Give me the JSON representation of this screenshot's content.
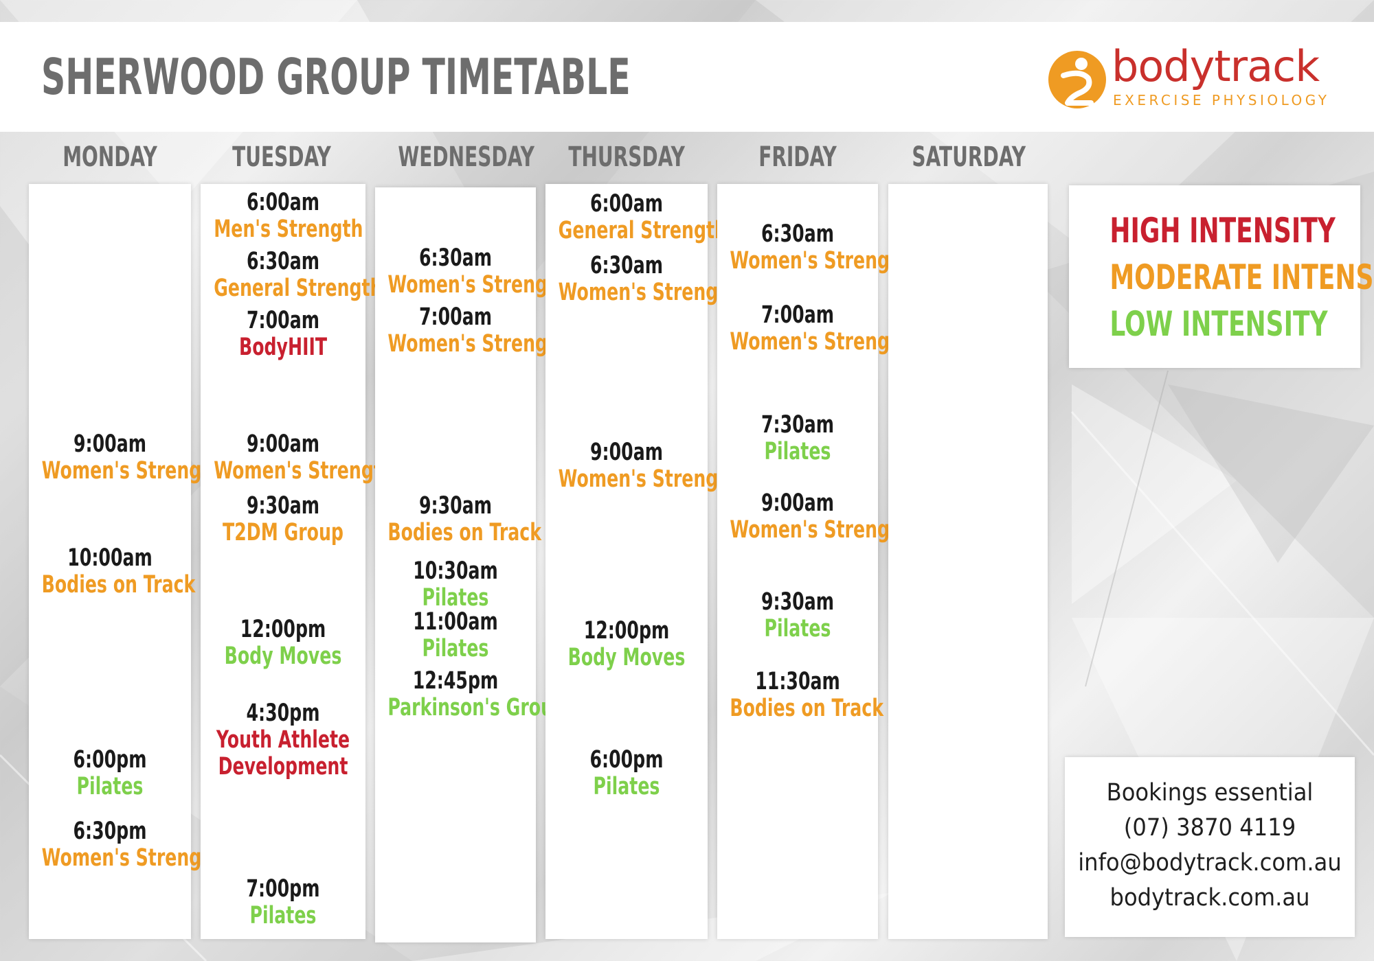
{
  "header": {
    "title": "SHERWOOD GROUP TIMETABLE",
    "logo": {
      "name": "bodytrack",
      "subtitle": "EXERCISE   PHYSIOLOGY",
      "icon": "bodytrack-logo-icon"
    }
  },
  "colors": {
    "high": "#c8202f",
    "moderate": "#ef9b23",
    "low": "#7ed04b",
    "time": "#1a1a1a",
    "heading": "#6d6d6d"
  },
  "days": [
    {
      "name": "MONDAY",
      "classes": [
        {
          "time": "9:00am",
          "name": "Women's Strength",
          "intensity": "moderate"
        },
        {
          "time": "10:00am",
          "name": "Bodies on Track",
          "intensity": "moderate"
        },
        {
          "time": "6:00pm",
          "name": "Pilates",
          "intensity": "low"
        },
        {
          "time": "6:30pm",
          "name": "Women's Strength",
          "intensity": "moderate"
        }
      ]
    },
    {
      "name": "TUESDAY",
      "classes": [
        {
          "time": "6:00am",
          "name": "Men's Strength",
          "intensity": "moderate"
        },
        {
          "time": "6:30am",
          "name": "General Strength",
          "intensity": "moderate"
        },
        {
          "time": "7:00am",
          "name": "BodyHIIT",
          "intensity": "high"
        },
        {
          "time": "9:00am",
          "name": "Women's Strength",
          "intensity": "moderate"
        },
        {
          "time": "9:30am",
          "name": "T2DM Group",
          "intensity": "moderate"
        },
        {
          "time": "12:00pm",
          "name": "Body Moves",
          "intensity": "low"
        },
        {
          "time": "4:30pm",
          "name": "Youth Athlete",
          "name2": "Development",
          "intensity": "high"
        },
        {
          "time": "7:00pm",
          "name": "Pilates",
          "intensity": "low"
        }
      ]
    },
    {
      "name": "WEDNESDAY",
      "classes": [
        {
          "time": "6:30am",
          "name": "Women's Strength",
          "intensity": "moderate"
        },
        {
          "time": "7:00am",
          "name": "Women's Strength",
          "intensity": "moderate"
        },
        {
          "time": "9:30am",
          "name": "Bodies on Track",
          "intensity": "moderate"
        },
        {
          "time": "10:30am",
          "name": "Pilates",
          "intensity": "low"
        },
        {
          "time": "11:00am",
          "name": "Pilates",
          "intensity": "low"
        },
        {
          "time": "12:45pm",
          "name": "Parkinson's Group",
          "intensity": "low"
        }
      ]
    },
    {
      "name": "THURSDAY",
      "classes": [
        {
          "time": "6:00am",
          "name": "General Strength",
          "intensity": "moderate"
        },
        {
          "time": "6:30am",
          "name": "Women's Strength",
          "intensity": "moderate"
        },
        {
          "time": "9:00am",
          "name": "Women's Strength",
          "intensity": "moderate"
        },
        {
          "time": "12:00pm",
          "name": "Body Moves",
          "intensity": "low"
        },
        {
          "time": "6:00pm",
          "name": "Pilates",
          "intensity": "low"
        }
      ]
    },
    {
      "name": "FRIDAY",
      "classes": [
        {
          "time": "6:30am",
          "name": "Women's Strength",
          "intensity": "moderate"
        },
        {
          "time": "7:00am",
          "name": "Women's Strength",
          "intensity": "moderate"
        },
        {
          "time": "7:30am",
          "name": "Pilates",
          "intensity": "low"
        },
        {
          "time": "9:00am",
          "name": "Women's Strength",
          "intensity": "moderate"
        },
        {
          "time": "9:30am",
          "name": "Pilates",
          "intensity": "low"
        },
        {
          "time": "11:30am",
          "name": "Bodies on Track",
          "intensity": "moderate"
        }
      ]
    },
    {
      "name": "SATURDAY",
      "classes": []
    }
  ],
  "legend": {
    "high": "HIGH INTENSITY",
    "moderate": "MODERATE INTENSITY",
    "low": "LOW INTENSITY"
  },
  "contact": {
    "bookings": "Bookings essential",
    "phone": "(07) 3870 4119",
    "email": "info@bodytrack.com.au",
    "website": "bodytrack.com.au"
  }
}
